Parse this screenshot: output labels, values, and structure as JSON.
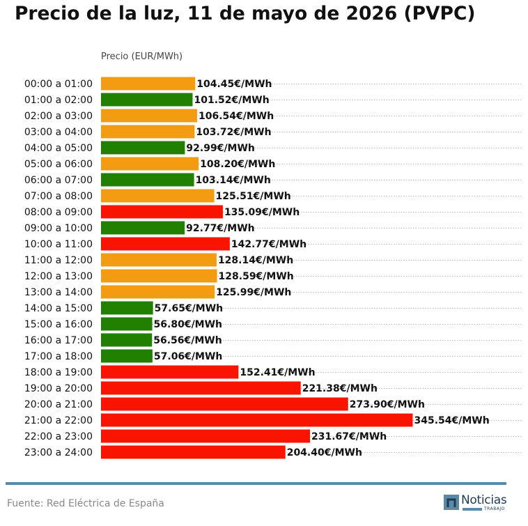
{
  "title": "Precio de la luz, 11 de mayo de 2026 (PVPC)",
  "source": "Fuente: Red Eléctrica de España",
  "logo": {
    "name": "Noticias",
    "sub": "TRABAJO"
  },
  "colors": {
    "low": "#228000",
    "mid": "#f39c12",
    "high": "#f91400",
    "accent": "#5b8aa6",
    "logo": "#1d3b57"
  },
  "chart_data": {
    "type": "bar",
    "orientation": "horizontal",
    "ylabel": "Precio (EUR/MWh)",
    "value_suffix": "€/MWh",
    "xlim": [
      0,
      400
    ],
    "grid": "dotted horizontal",
    "categories": [
      "00:00 a 01:00",
      "01:00 a 02:00",
      "02:00 a 03:00",
      "03:00 a 04:00",
      "04:00 a 05:00",
      "05:00 a 06:00",
      "06:00 a 07:00",
      "07:00 a 08:00",
      "08:00 a 09:00",
      "09:00 a 10:00",
      "10:00 a 11:00",
      "11:00 a 12:00",
      "12:00 a 13:00",
      "13:00 a 14:00",
      "14:00 a 15:00",
      "15:00 a 16:00",
      "16:00 a 17:00",
      "17:00 a 18:00",
      "18:00 a 19:00",
      "19:00 a 20:00",
      "20:00 a 21:00",
      "21:00 a 22:00",
      "22:00 a 23:00",
      "23:00 a 24:00"
    ],
    "values": [
      104.45,
      101.52,
      106.54,
      103.72,
      92.99,
      108.2,
      103.14,
      125.51,
      135.09,
      92.77,
      142.77,
      128.14,
      128.59,
      125.99,
      57.65,
      56.8,
      56.56,
      57.06,
      152.41,
      221.38,
      273.9,
      345.54,
      231.67,
      204.4
    ],
    "levels": [
      "mid",
      "low",
      "mid",
      "mid",
      "low",
      "mid",
      "low",
      "mid",
      "high",
      "low",
      "high",
      "mid",
      "mid",
      "mid",
      "low",
      "low",
      "low",
      "low",
      "high",
      "high",
      "high",
      "high",
      "high",
      "high"
    ]
  }
}
